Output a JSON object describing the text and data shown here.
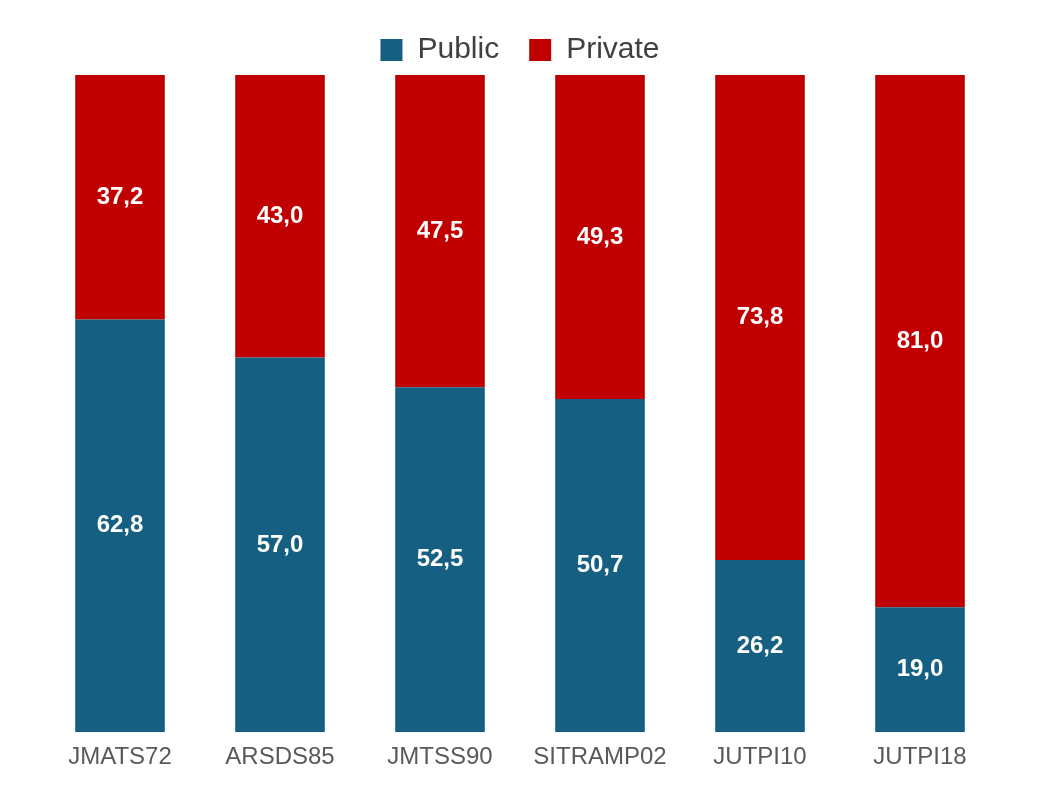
{
  "chart_data": {
    "type": "bar",
    "stacked": true,
    "legend": "top",
    "tick_labels": "x",
    "grid": false,
    "categories": [
      "JMATS72",
      "ARSDS85",
      "JMTSS90",
      "SITRAMP02",
      "JUTPI10",
      "JUTPI18"
    ],
    "series": [
      {
        "name": "Public",
        "color": "#156082",
        "values": [
          62.8,
          57.0,
          52.5,
          50.7,
          26.2,
          19.0
        ],
        "value_labels": [
          "62,8",
          "57,0",
          "52,5",
          "50,7",
          "26,2",
          "19,0"
        ]
      },
      {
        "name": "Private",
        "color": "#c00000",
        "values": [
          37.2,
          43.0,
          47.5,
          49.3,
          73.8,
          81.0
        ],
        "value_labels": [
          "37,2",
          "43,0",
          "47,5",
          "49,3",
          "73,8",
          "81,0"
        ]
      }
    ]
  }
}
